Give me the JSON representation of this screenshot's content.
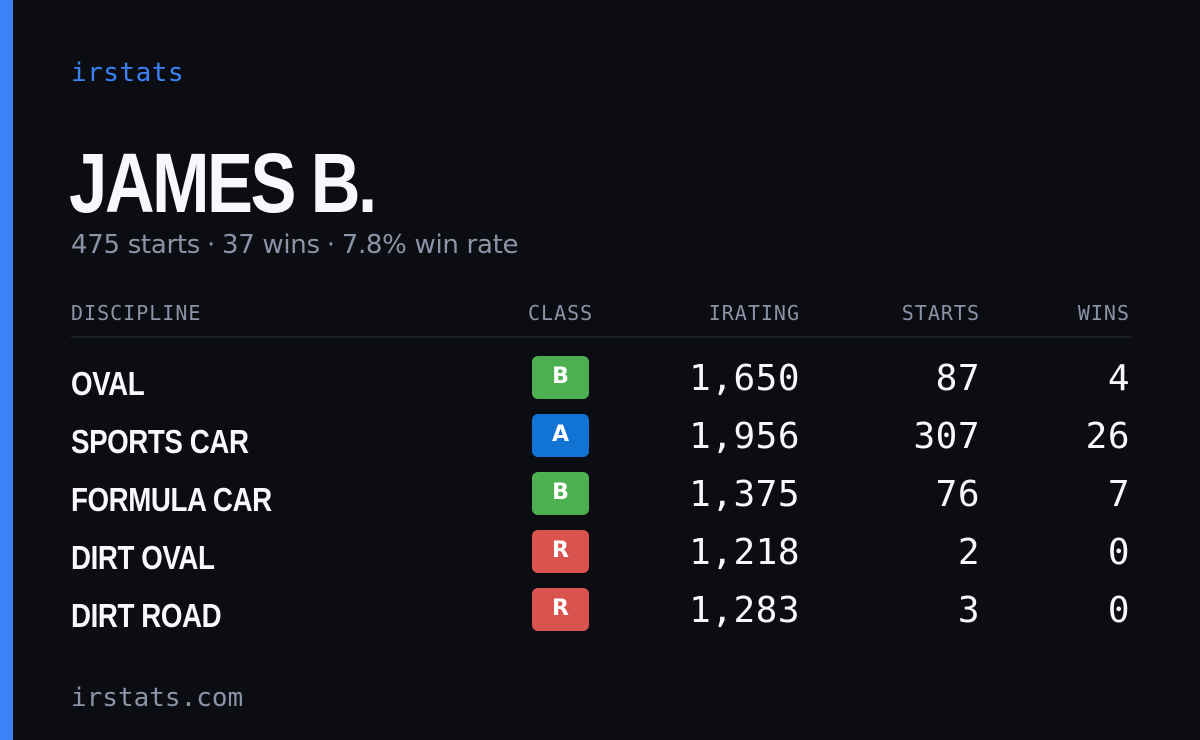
{
  "brand": "irstats",
  "driver": {
    "name": "JAMES B.",
    "starts_text": "475 starts",
    "wins_text": "37 wins",
    "winrate_text": "7.8% win rate",
    "separator": "·"
  },
  "table": {
    "headers": {
      "discipline": "DISCIPLINE",
      "class": "CLASS",
      "irating": "IRATING",
      "starts": "STARTS",
      "wins": "WINS"
    },
    "rows": [
      {
        "discipline": "OVAL",
        "class": "B",
        "class_color": "#4caf50",
        "irating": "1,650",
        "starts": "87",
        "wins": "4"
      },
      {
        "discipline": "SPORTS CAR",
        "class": "A",
        "class_color": "#1173d4",
        "irating": "1,956",
        "starts": "307",
        "wins": "26"
      },
      {
        "discipline": "FORMULA CAR",
        "class": "B",
        "class_color": "#4caf50",
        "irating": "1,375",
        "starts": "76",
        "wins": "7"
      },
      {
        "discipline": "DIRT OVAL",
        "class": "R",
        "class_color": "#d9534f",
        "irating": "1,218",
        "starts": "2",
        "wins": "0"
      },
      {
        "discipline": "DIRT ROAD",
        "class": "R",
        "class_color": "#d9534f",
        "irating": "1,283",
        "starts": "3",
        "wins": "0"
      }
    ]
  },
  "footer": "irstats.com",
  "colors": {
    "background": "#0b0d13",
    "accent": "#3b82f6",
    "text": "#f7f8fb",
    "muted": "#8b94a7"
  }
}
